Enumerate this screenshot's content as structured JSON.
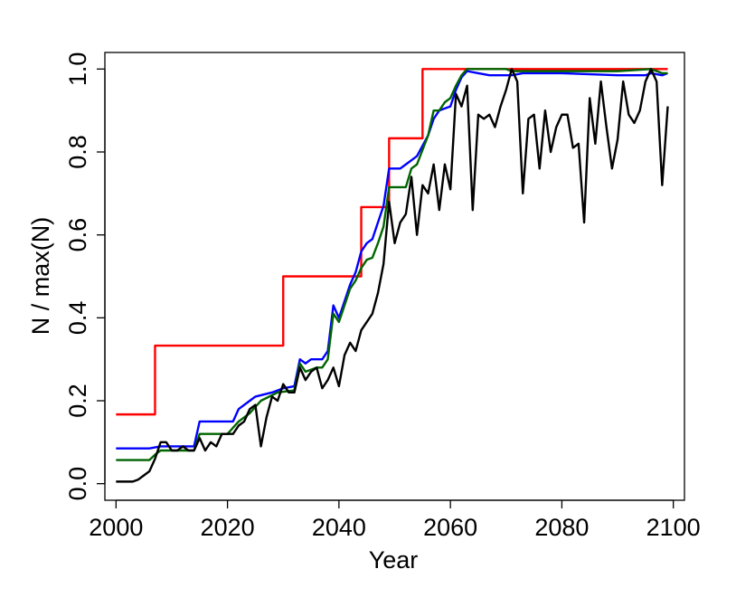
{
  "chart_data": {
    "type": "line",
    "title": "",
    "xlabel": "Year",
    "ylabel": "N / max(N)",
    "xlim": [
      1998,
      2102
    ],
    "ylim": [
      -0.04,
      1.04
    ],
    "xticks": [
      "2000",
      "2020",
      "2040",
      "2060",
      "2080",
      "2100"
    ],
    "yticks": [
      "0.0",
      "0.2",
      "0.4",
      "0.6",
      "0.8",
      "1.0"
    ],
    "grid": false,
    "legend": "none",
    "series": [
      {
        "color": "#ff0000",
        "step": true,
        "points": [
          [
            2000,
            0.167
          ],
          [
            2006,
            0.167
          ],
          [
            2007,
            0.333
          ],
          [
            2029,
            0.333
          ],
          [
            2030,
            0.5
          ],
          [
            2043,
            0.5
          ],
          [
            2044,
            0.667
          ],
          [
            2048,
            0.667
          ],
          [
            2049,
            0.833
          ],
          [
            2054,
            0.833
          ],
          [
            2055,
            1.0
          ],
          [
            2099,
            1.0
          ]
        ]
      },
      {
        "color": "#0000ff",
        "points": [
          [
            2000,
            0.085
          ],
          [
            2006,
            0.085
          ],
          [
            2008,
            0.09
          ],
          [
            2012,
            0.09
          ],
          [
            2014,
            0.09
          ],
          [
            2015,
            0.15
          ],
          [
            2021,
            0.15
          ],
          [
            2022,
            0.18
          ],
          [
            2024,
            0.2
          ],
          [
            2025,
            0.21
          ],
          [
            2028,
            0.22
          ],
          [
            2030,
            0.23
          ],
          [
            2032,
            0.235
          ],
          [
            2033,
            0.3
          ],
          [
            2034,
            0.29
          ],
          [
            2035,
            0.3
          ],
          [
            2037,
            0.3
          ],
          [
            2038,
            0.32
          ],
          [
            2039,
            0.43
          ],
          [
            2040,
            0.4
          ],
          [
            2042,
            0.48
          ],
          [
            2043,
            0.51
          ],
          [
            2044,
            0.56
          ],
          [
            2045,
            0.58
          ],
          [
            2046,
            0.59
          ],
          [
            2047,
            0.63
          ],
          [
            2048,
            0.67
          ],
          [
            2049,
            0.76
          ],
          [
            2051,
            0.76
          ],
          [
            2052,
            0.77
          ],
          [
            2053,
            0.78
          ],
          [
            2054,
            0.79
          ],
          [
            2056,
            0.84
          ],
          [
            2057,
            0.88
          ],
          [
            2058,
            0.9
          ],
          [
            2060,
            0.91
          ],
          [
            2061,
            0.95
          ],
          [
            2062,
            0.98
          ],
          [
            2063,
            0.995
          ],
          [
            2065,
            0.99
          ],
          [
            2067,
            0.985
          ],
          [
            2071,
            0.985
          ],
          [
            2073,
            0.99
          ],
          [
            2080,
            0.99
          ],
          [
            2090,
            0.985
          ],
          [
            2095,
            0.985
          ],
          [
            2096,
            0.99
          ],
          [
            2098,
            0.985
          ],
          [
            2099,
            0.99
          ]
        ]
      },
      {
        "color": "#006400",
        "points": [
          [
            2000,
            0.057
          ],
          [
            2006,
            0.057
          ],
          [
            2007,
            0.07
          ],
          [
            2008,
            0.08
          ],
          [
            2014,
            0.08
          ],
          [
            2015,
            0.12
          ],
          [
            2020,
            0.12
          ],
          [
            2022,
            0.15
          ],
          [
            2024,
            0.17
          ],
          [
            2026,
            0.2
          ],
          [
            2029,
            0.22
          ],
          [
            2032,
            0.225
          ],
          [
            2033,
            0.29
          ],
          [
            2034,
            0.27
          ],
          [
            2036,
            0.28
          ],
          [
            2037,
            0.28
          ],
          [
            2038,
            0.3
          ],
          [
            2039,
            0.41
          ],
          [
            2040,
            0.39
          ],
          [
            2042,
            0.47
          ],
          [
            2043,
            0.49
          ],
          [
            2044,
            0.52
          ],
          [
            2045,
            0.54
          ],
          [
            2046,
            0.545
          ],
          [
            2047,
            0.58
          ],
          [
            2048,
            0.62
          ],
          [
            2049,
            0.715
          ],
          [
            2052,
            0.715
          ],
          [
            2053,
            0.76
          ],
          [
            2054,
            0.77
          ],
          [
            2056,
            0.84
          ],
          [
            2057,
            0.9
          ],
          [
            2058,
            0.9
          ],
          [
            2059,
            0.92
          ],
          [
            2060,
            0.93
          ],
          [
            2061,
            0.96
          ],
          [
            2062,
            0.985
          ],
          [
            2063,
            1.0
          ],
          [
            2070,
            1.0
          ],
          [
            2071,
            0.995
          ],
          [
            2080,
            0.995
          ],
          [
            2090,
            0.995
          ],
          [
            2096,
            1.0
          ],
          [
            2098,
            0.99
          ],
          [
            2099,
            0.99
          ]
        ]
      },
      {
        "color": "#000000",
        "points": [
          [
            2000,
            0.005
          ],
          [
            2003,
            0.005
          ],
          [
            2004,
            0.01
          ],
          [
            2005,
            0.02
          ],
          [
            2006,
            0.03
          ],
          [
            2007,
            0.06
          ],
          [
            2008,
            0.1
          ],
          [
            2009,
            0.1
          ],
          [
            2010,
            0.08
          ],
          [
            2011,
            0.08
          ],
          [
            2012,
            0.09
          ],
          [
            2013,
            0.08
          ],
          [
            2014,
            0.08
          ],
          [
            2015,
            0.11
          ],
          [
            2016,
            0.08
          ],
          [
            2017,
            0.1
          ],
          [
            2018,
            0.09
          ],
          [
            2019,
            0.12
          ],
          [
            2020,
            0.12
          ],
          [
            2021,
            0.12
          ],
          [
            2022,
            0.14
          ],
          [
            2023,
            0.15
          ],
          [
            2024,
            0.18
          ],
          [
            2025,
            0.19
          ],
          [
            2026,
            0.09
          ],
          [
            2027,
            0.16
          ],
          [
            2028,
            0.21
          ],
          [
            2029,
            0.2
          ],
          [
            2030,
            0.24
          ],
          [
            2031,
            0.22
          ],
          [
            2032,
            0.22
          ],
          [
            2033,
            0.28
          ],
          [
            2034,
            0.25
          ],
          [
            2035,
            0.27
          ],
          [
            2036,
            0.28
          ],
          [
            2037,
            0.23
          ],
          [
            2038,
            0.25
          ],
          [
            2039,
            0.28
          ],
          [
            2040,
            0.235
          ],
          [
            2041,
            0.31
          ],
          [
            2042,
            0.34
          ],
          [
            2043,
            0.32
          ],
          [
            2044,
            0.37
          ],
          [
            2045,
            0.39
          ],
          [
            2046,
            0.41
          ],
          [
            2047,
            0.46
          ],
          [
            2048,
            0.53
          ],
          [
            2049,
            0.68
          ],
          [
            2050,
            0.58
          ],
          [
            2051,
            0.63
          ],
          [
            2052,
            0.65
          ],
          [
            2053,
            0.74
          ],
          [
            2054,
            0.6
          ],
          [
            2055,
            0.72
          ],
          [
            2056,
            0.7
          ],
          [
            2057,
            0.77
          ],
          [
            2058,
            0.66
          ],
          [
            2059,
            0.77
          ],
          [
            2060,
            0.71
          ],
          [
            2061,
            0.94
          ],
          [
            2062,
            0.91
          ],
          [
            2063,
            0.96
          ],
          [
            2064,
            0.66
          ],
          [
            2065,
            0.89
          ],
          [
            2066,
            0.88
          ],
          [
            2067,
            0.89
          ],
          [
            2068,
            0.86
          ],
          [
            2069,
            0.91
          ],
          [
            2070,
            0.95
          ],
          [
            2071,
            1.0
          ],
          [
            2072,
            0.97
          ],
          [
            2073,
            0.7
          ],
          [
            2074,
            0.88
          ],
          [
            2075,
            0.89
          ],
          [
            2076,
            0.76
          ],
          [
            2077,
            0.9
          ],
          [
            2078,
            0.8
          ],
          [
            2079,
            0.86
          ],
          [
            2080,
            0.89
          ],
          [
            2081,
            0.89
          ],
          [
            2082,
            0.81
          ],
          [
            2083,
            0.82
          ],
          [
            2084,
            0.63
          ],
          [
            2085,
            0.93
          ],
          [
            2086,
            0.82
          ],
          [
            2087,
            0.97
          ],
          [
            2088,
            0.86
          ],
          [
            2089,
            0.76
          ],
          [
            2090,
            0.83
          ],
          [
            2091,
            0.97
          ],
          [
            2092,
            0.89
          ],
          [
            2093,
            0.87
          ],
          [
            2094,
            0.9
          ],
          [
            2095,
            0.97
          ],
          [
            2096,
            1.0
          ],
          [
            2097,
            0.97
          ],
          [
            2098,
            0.72
          ],
          [
            2099,
            0.91
          ]
        ]
      }
    ]
  }
}
